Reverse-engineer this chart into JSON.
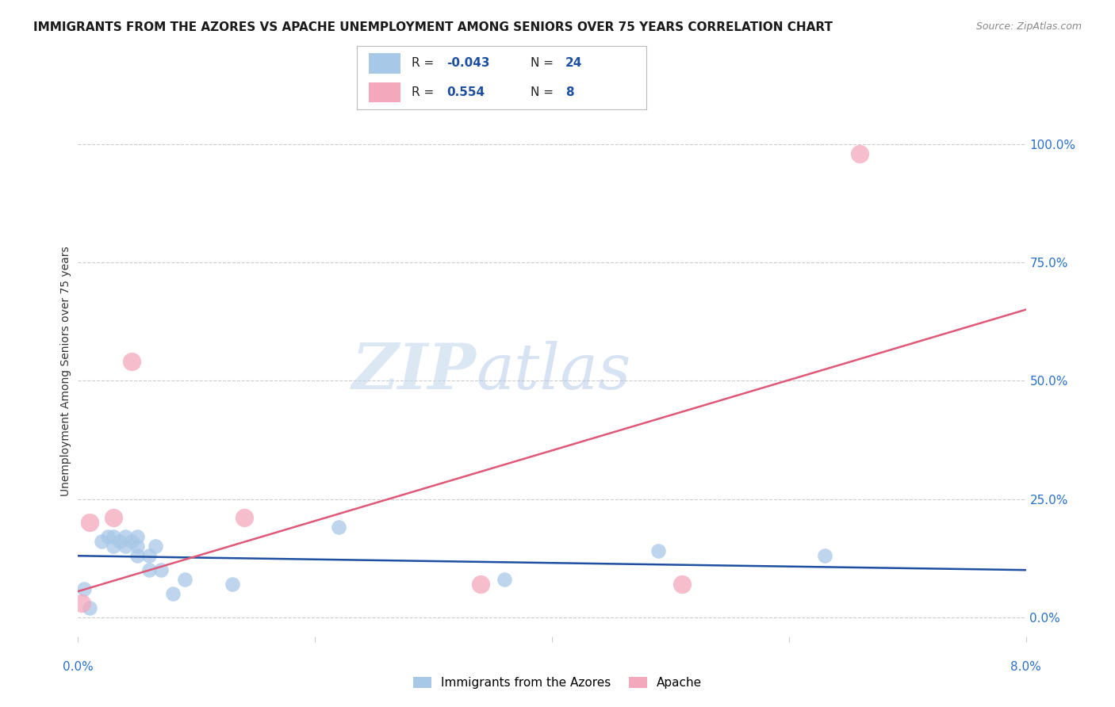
{
  "title": "IMMIGRANTS FROM THE AZORES VS APACHE UNEMPLOYMENT AMONG SENIORS OVER 75 YEARS CORRELATION CHART",
  "source": "Source: ZipAtlas.com",
  "ylabel": "Unemployment Among Seniors over 75 years",
  "right_yticks": [
    "100.0%",
    "75.0%",
    "50.0%",
    "25.0%",
    "0.0%"
  ],
  "right_ytick_vals": [
    1.0,
    0.75,
    0.5,
    0.25,
    0.0
  ],
  "xlim": [
    0.0,
    0.08
  ],
  "ylim": [
    -0.04,
    1.08
  ],
  "watermark_zip": "ZIP",
  "watermark_atlas": "atlas",
  "legend_blue_label": "Immigrants from the Azores",
  "legend_pink_label": "Apache",
  "blue_color": "#a8c8e8",
  "pink_color": "#f4a8bc",
  "blue_line_color": "#1e4fa0",
  "pink_line_color": "#e05878",
  "blue_scatter_x": [
    0.0005,
    0.001,
    0.002,
    0.0025,
    0.003,
    0.003,
    0.0035,
    0.004,
    0.004,
    0.0045,
    0.005,
    0.005,
    0.005,
    0.006,
    0.006,
    0.0065,
    0.007,
    0.008,
    0.009,
    0.013,
    0.022,
    0.036,
    0.049,
    0.063
  ],
  "blue_scatter_y": [
    0.06,
    0.02,
    0.16,
    0.17,
    0.15,
    0.17,
    0.16,
    0.15,
    0.17,
    0.16,
    0.13,
    0.15,
    0.17,
    0.1,
    0.13,
    0.15,
    0.1,
    0.05,
    0.08,
    0.07,
    0.19,
    0.08,
    0.14,
    0.13
  ],
  "pink_scatter_x": [
    0.0003,
    0.001,
    0.003,
    0.0045,
    0.014,
    0.034,
    0.051,
    0.066
  ],
  "pink_scatter_y": [
    0.03,
    0.2,
    0.21,
    0.54,
    0.21,
    0.07,
    0.07,
    0.98
  ],
  "blue_trendline_x": [
    0.0,
    0.08
  ],
  "blue_trendline_y": [
    0.13,
    0.1
  ],
  "pink_trendline_x": [
    0.0,
    0.08
  ],
  "pink_trendline_y": [
    0.055,
    0.65
  ],
  "title_color": "#1a1a1a",
  "right_axis_color": "#2970c6",
  "grid_color": "#cccccc",
  "background_color": "#ffffff"
}
